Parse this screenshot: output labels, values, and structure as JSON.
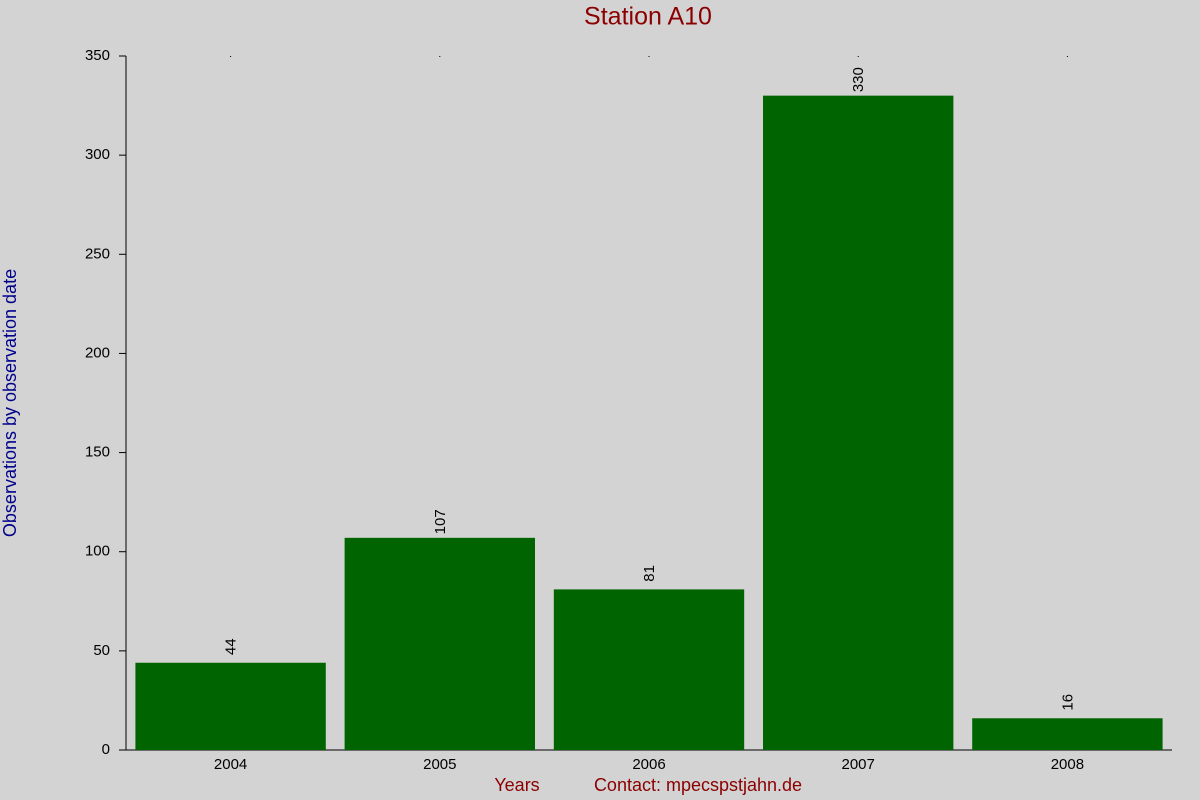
{
  "chart_data": {
    "type": "bar",
    "title": "Station A10",
    "y_label": "Observations by observation date",
    "x_label": "Years",
    "note": "Contact: mpecspstjahn.de",
    "categories": [
      "2004",
      "2005",
      "2006",
      "2007",
      "2008"
    ],
    "values": [
      44,
      107,
      81,
      330,
      16
    ],
    "color": "#006400",
    "ylim": [
      0,
      350
    ],
    "yticks": [
      0,
      50,
      100,
      150,
      200,
      250,
      300,
      350
    ],
    "grid": false
  }
}
